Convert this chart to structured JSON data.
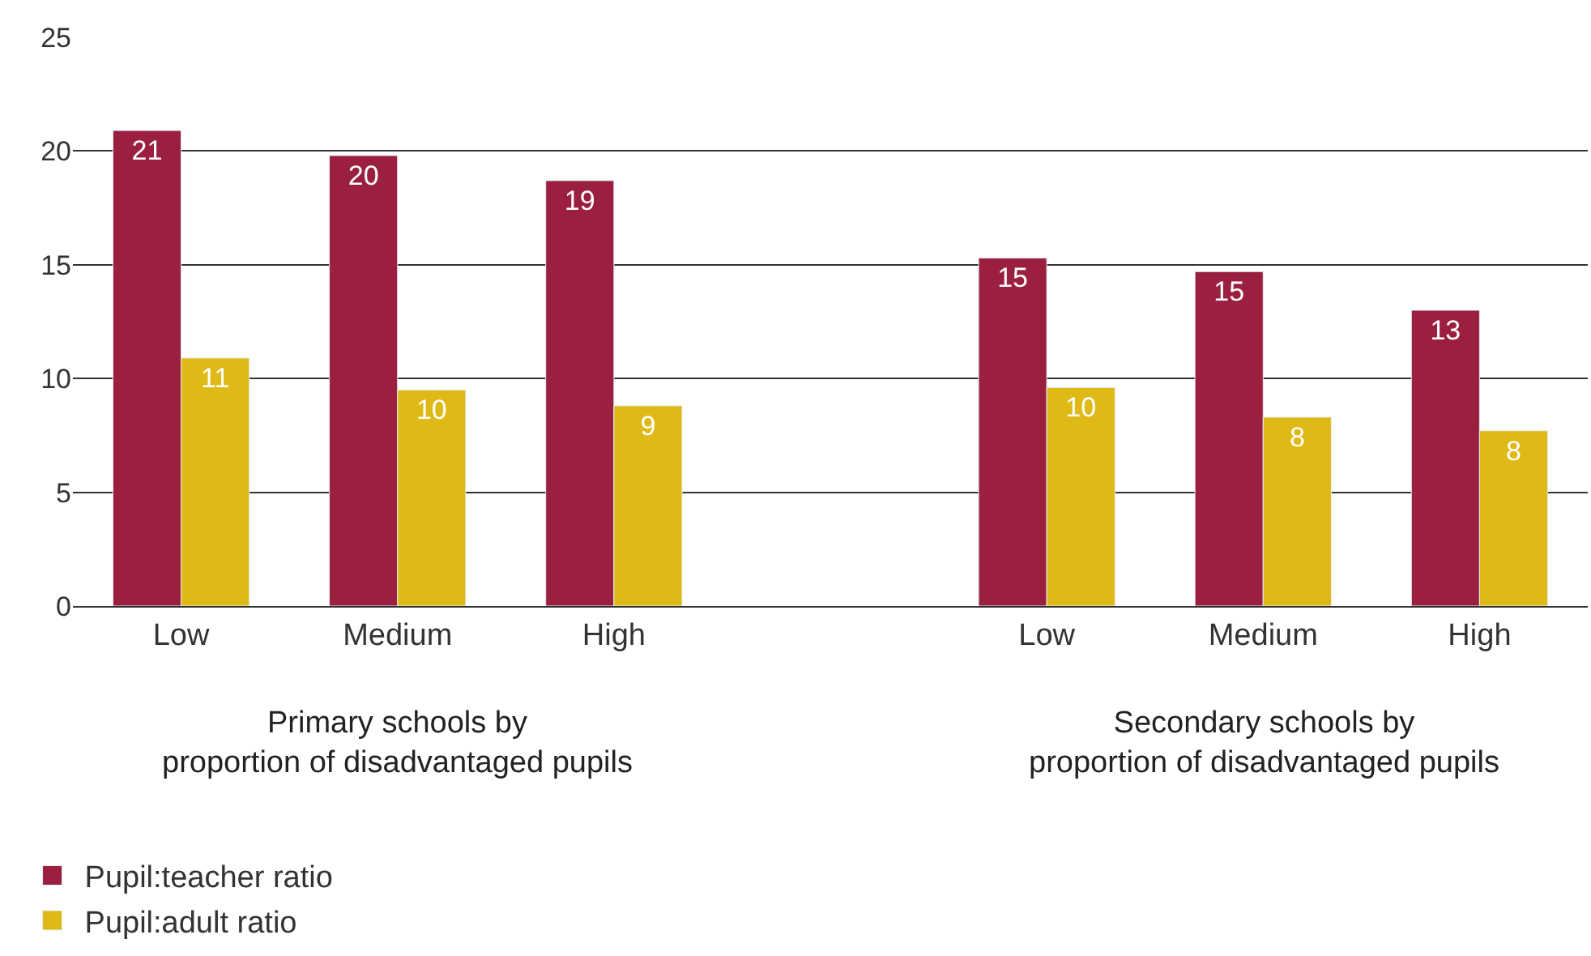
{
  "chart_data": {
    "type": "bar",
    "categories": [
      "Low",
      "Medium",
      "High",
      null,
      "Low",
      "Medium",
      "High"
    ],
    "series": [
      {
        "name": "Pupil:teacher ratio",
        "color": "#9b2040",
        "values": [
          20.9,
          19.8,
          18.7,
          null,
          15.3,
          14.7,
          13.0
        ],
        "value_labels": [
          "21",
          "20",
          "19",
          null,
          "15",
          "15",
          "13"
        ]
      },
      {
        "name": "Pupil:adult ratio",
        "color": "#dfb916",
        "values": [
          10.9,
          9.5,
          8.8,
          null,
          9.6,
          8.3,
          7.7
        ],
        "value_labels": [
          "11",
          "10",
          "9",
          null,
          "10",
          "8",
          "8"
        ]
      }
    ],
    "annotations": [
      "Primary schools by\nproportion of disadvantaged pupils",
      "Secondary schools by\nproportion of disadvantaged pupils"
    ],
    "ylim": [
      0,
      25
    ],
    "yticks": [
      0,
      5,
      10,
      15,
      20,
      25
    ],
    "grid": "y",
    "legend": "bottom left"
  }
}
